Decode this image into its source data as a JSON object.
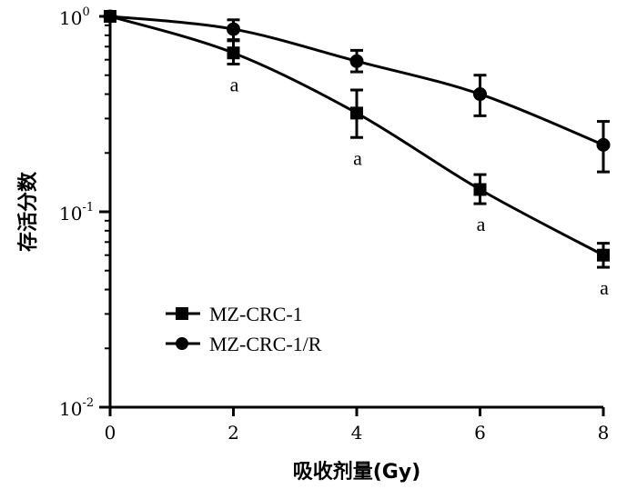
{
  "chart_data": {
    "type": "line",
    "xlabel": "吸收剂量(Gy)",
    "ylabel": "存活分数",
    "x_ticks": [
      "0",
      "2",
      "4",
      "6",
      "8"
    ],
    "y_ticks": [
      {
        "base": "10",
        "exp": "0",
        "value": 1
      },
      {
        "base": "10",
        "exp": "-1",
        "value": 0.1
      },
      {
        "base": "10",
        "exp": "-2",
        "value": 0.01
      }
    ],
    "xlim": [
      0,
      8
    ],
    "ylim": [
      0.01,
      1
    ],
    "yscale": "log",
    "grid": false,
    "legend_position": "bottom-left",
    "series": [
      {
        "name": "MZ-CRC-1",
        "marker": "square",
        "x": [
          0,
          2,
          4,
          6,
          8
        ],
        "y": [
          1.0,
          0.65,
          0.32,
          0.13,
          0.06
        ],
        "err_low": [
          1.0,
          0.57,
          0.24,
          0.11,
          0.052
        ],
        "err_high": [
          1.0,
          0.75,
          0.42,
          0.155,
          0.069
        ],
        "annotations": [
          "",
          "a",
          "a",
          "a",
          "a"
        ]
      },
      {
        "name": "MZ-CRC-1/R",
        "marker": "circle",
        "x": [
          0,
          2,
          4,
          6,
          8
        ],
        "y": [
          1.0,
          0.86,
          0.59,
          0.4,
          0.22
        ],
        "err_low": [
          1.0,
          0.76,
          0.52,
          0.31,
          0.16
        ],
        "err_high": [
          1.0,
          0.96,
          0.67,
          0.5,
          0.29
        ],
        "annotations": [
          "",
          "",
          "",
          "",
          ""
        ]
      }
    ]
  }
}
